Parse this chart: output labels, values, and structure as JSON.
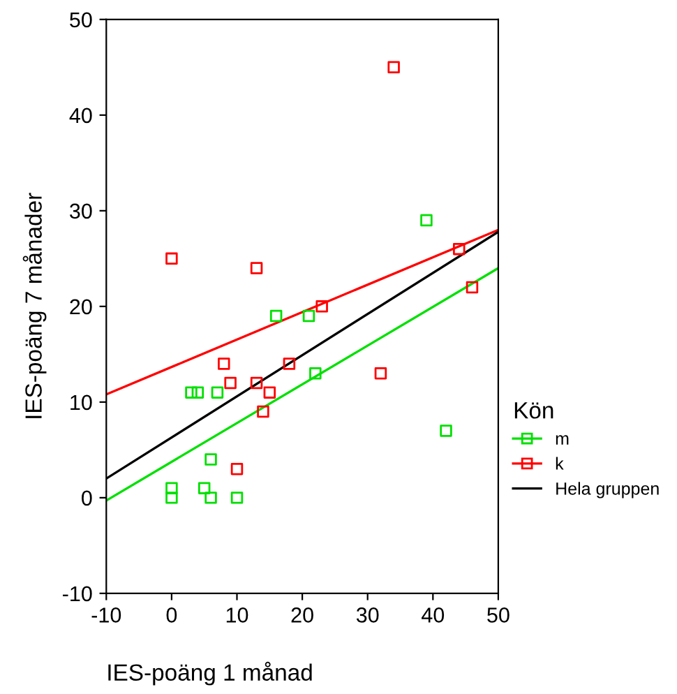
{
  "chart_data": {
    "type": "scatter",
    "xlabel": "IES-poäng 1 månad",
    "ylabel": "IES-poäng 7 månader",
    "legend_title": "Kön",
    "legend": "right",
    "grid": false,
    "xlim": [
      -10,
      50
    ],
    "xticks": [
      -10,
      0,
      10,
      20,
      30,
      40,
      50
    ],
    "ylim": [
      -10,
      50
    ],
    "yticks": [
      -10,
      0,
      10,
      20,
      30,
      40,
      50
    ],
    "series": [
      {
        "name": "m",
        "marker": "square",
        "color": "#00e000",
        "x": [
          0,
          0,
          3,
          4,
          5,
          6,
          6,
          7,
          10,
          16,
          21,
          22,
          39,
          42
        ],
        "values": [
          1,
          0,
          11,
          11,
          1,
          4,
          0,
          11,
          0,
          19,
          19,
          13,
          29,
          7
        ]
      },
      {
        "name": "k",
        "marker": "square",
        "color": "#ff0000",
        "x": [
          0,
          8,
          9,
          10,
          13,
          13,
          14,
          15,
          18,
          23,
          32,
          34,
          44,
          46
        ],
        "values": [
          25,
          14,
          12,
          3,
          24,
          12,
          9,
          11,
          14,
          20,
          13,
          45,
          26,
          22
        ]
      },
      {
        "type": "line",
        "marker": "none",
        "color": "#00e000",
        "x": [
          -10,
          50
        ],
        "values": [
          -0.3,
          24
        ]
      },
      {
        "type": "line",
        "marker": "none",
        "color": "#ff0000",
        "x": [
          -10,
          50
        ],
        "values": [
          10.8,
          28
        ]
      },
      {
        "type": "line",
        "marker": "none",
        "name": "Hela gruppen",
        "color": "#000000",
        "x": [
          -10,
          50
        ],
        "values": [
          2,
          27.8
        ]
      }
    ]
  }
}
